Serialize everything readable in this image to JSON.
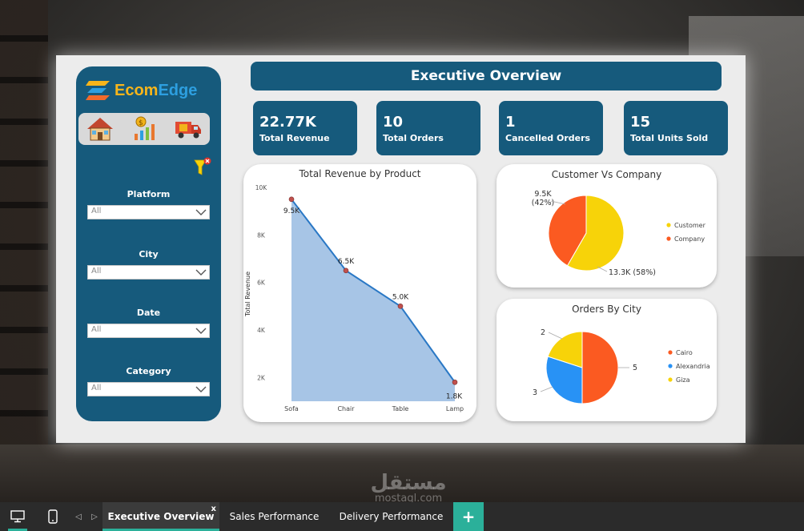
{
  "app": {
    "brand_part1": "Ecom",
    "brand_part2": "Edge"
  },
  "header": {
    "title": "Executive Overview"
  },
  "nav": {
    "items": [
      "home-icon",
      "sales-chart-icon",
      "delivery-truck-icon"
    ]
  },
  "kpis": [
    {
      "value": "22.77K",
      "label": "Total Revenue"
    },
    {
      "value": "10",
      "label": "Total Orders"
    },
    {
      "value": "1",
      "label": "Cancelled Orders"
    },
    {
      "value": "15",
      "label": "Total Units Sold"
    }
  ],
  "slicers": [
    {
      "title": "Platform",
      "value": "All"
    },
    {
      "title": "City",
      "value": "All"
    },
    {
      "title": "Date",
      "value": "All"
    },
    {
      "title": "Category",
      "value": "All"
    }
  ],
  "chart_data": [
    {
      "type": "area",
      "title": "Total Revenue by Product",
      "xlabel": "",
      "ylabel": "Total Revenue",
      "categories": [
        "Sofa",
        "Chair",
        "Table",
        "Lamp"
      ],
      "values": [
        9500,
        6500,
        5000,
        1800
      ],
      "data_labels": [
        "9.5K",
        "6.5K",
        "5.0K",
        "1.8K"
      ],
      "yticks": [
        "2K",
        "4K",
        "6K",
        "8K",
        "10K"
      ],
      "ylim": [
        1000,
        10000
      ],
      "colors": {
        "fill": "#a7c5e6",
        "line": "#2a78c5",
        "marker": "#c0504d"
      }
    },
    {
      "type": "pie",
      "title": "Customer Vs Company",
      "labels": [
        "Customer",
        "Company"
      ],
      "values": [
        13300,
        9500
      ],
      "data_labels": [
        "13.3K (58%)",
        "9.5K\n(42%)"
      ],
      "colors": [
        "#f7d309",
        "#fb5a21"
      ],
      "legend": "right"
    },
    {
      "type": "pie",
      "title": "Orders By City",
      "labels": [
        "Cairo",
        "Alexandria",
        "Giza"
      ],
      "values": [
        5,
        3,
        2
      ],
      "data_labels": [
        "5",
        "3",
        "2"
      ],
      "colors": [
        "#fb5a21",
        "#2892f5",
        "#f7d309"
      ],
      "legend": "right"
    }
  ],
  "tabs": [
    {
      "label": "Executive Overview",
      "active": true,
      "close": "x"
    },
    {
      "label": "Sales Performance",
      "active": false
    },
    {
      "label": "Delivery Performance",
      "active": false
    }
  ],
  "tabbar": {
    "add": "+"
  },
  "watermark": {
    "arabic": "مستقل",
    "latin": "mostaql.com"
  }
}
